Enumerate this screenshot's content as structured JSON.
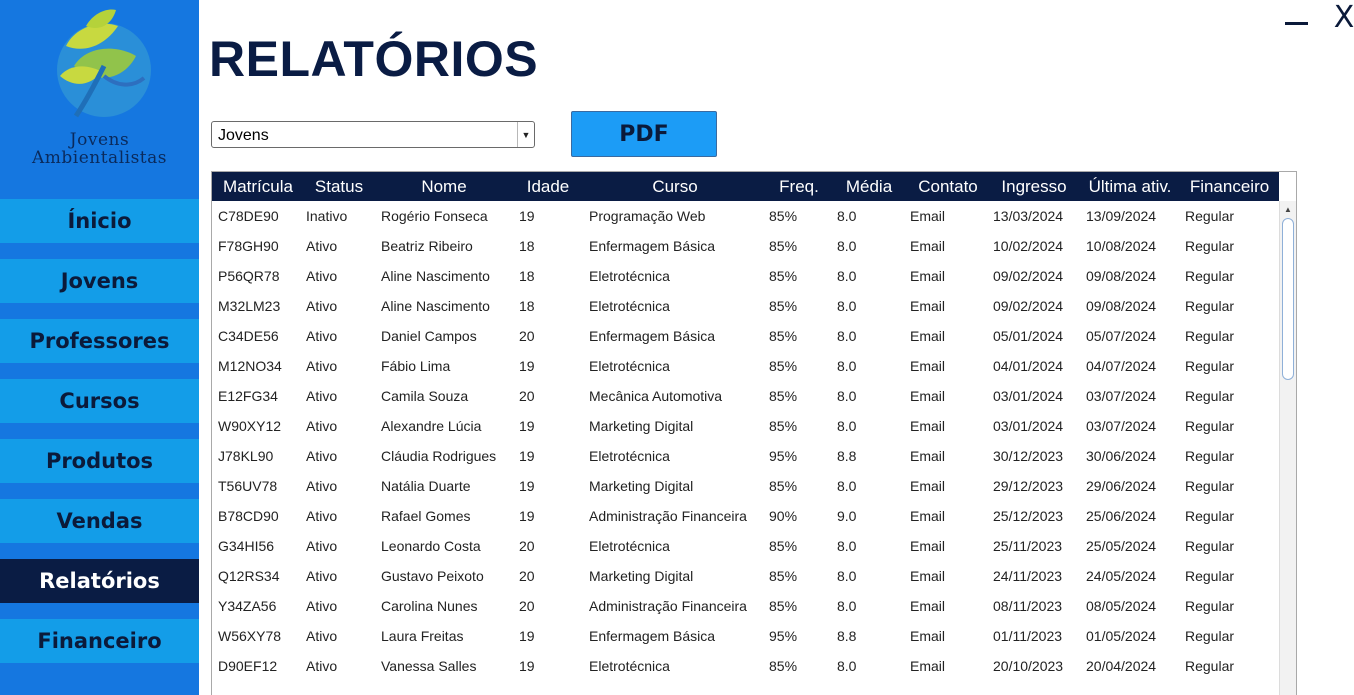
{
  "logo": {
    "line1": "Jovens",
    "line2": "Ambientalistas"
  },
  "colors": {
    "sidebar_bg": "#1577e0",
    "nav_bg": "#139de8",
    "nav_active": "#0a1c44",
    "header_bg": "#0a1c44",
    "pdf_button": "#1c9cf6"
  },
  "sidebar": {
    "items": [
      {
        "label": "Ínicio"
      },
      {
        "label": "Jovens"
      },
      {
        "label": "Professores"
      },
      {
        "label": "Cursos"
      },
      {
        "label": "Produtos"
      },
      {
        "label": "Vendas"
      },
      {
        "label": "Relatórios"
      },
      {
        "label": "Financeiro"
      }
    ],
    "active_index": 6
  },
  "window": {
    "minimize_icon": "minimize-icon",
    "close_label": "X"
  },
  "page": {
    "title": "RELATÓRIOS"
  },
  "report_select": {
    "value": "Jovens"
  },
  "pdf_button": {
    "label": "PDF"
  },
  "table": {
    "columns": [
      "Matrícula",
      "Status",
      "Nome",
      "Idade",
      "Curso",
      "Freq.",
      "Média",
      "Contato",
      "Ingresso",
      "Última ativ.",
      "Financeiro"
    ],
    "rows": [
      [
        "C78DE90",
        "Inativo",
        "Rogério Fonseca",
        "19",
        "Programação Web",
        "85%",
        "8.0",
        "Email",
        "13/03/2024",
        "13/09/2024",
        "Regular"
      ],
      [
        "F78GH90",
        "Ativo",
        "Beatriz Ribeiro",
        "18",
        "Enfermagem Básica",
        "85%",
        "8.0",
        "Email",
        "10/02/2024",
        "10/08/2024",
        "Regular"
      ],
      [
        "P56QR78",
        "Ativo",
        "Aline Nascimento",
        "18",
        "Eletrotécnica",
        "85%",
        "8.0",
        "Email",
        "09/02/2024",
        "09/08/2024",
        "Regular"
      ],
      [
        "M32LM23",
        "Ativo",
        "Aline Nascimento",
        "18",
        "Eletrotécnica",
        "85%",
        "8.0",
        "Email",
        "09/02/2024",
        "09/08/2024",
        "Regular"
      ],
      [
        "C34DE56",
        "Ativo",
        "Daniel Campos",
        "20",
        "Enfermagem Básica",
        "85%",
        "8.0",
        "Email",
        "05/01/2024",
        "05/07/2024",
        "Regular"
      ],
      [
        "M12NO34",
        "Ativo",
        "Fábio Lima",
        "19",
        "Eletrotécnica",
        "85%",
        "8.0",
        "Email",
        "04/01/2024",
        "04/07/2024",
        "Regular"
      ],
      [
        "E12FG34",
        "Ativo",
        "Camila Souza",
        "20",
        "Mecânica Automotiva",
        "85%",
        "8.0",
        "Email",
        "03/01/2024",
        "03/07/2024",
        "Regular"
      ],
      [
        "W90XY12",
        "Ativo",
        "Alexandre Lúcia",
        "19",
        "Marketing Digital",
        "85%",
        "8.0",
        "Email",
        "03/01/2024",
        "03/07/2024",
        "Regular"
      ],
      [
        "J78KL90",
        "Ativo",
        "Cláudia Rodrigues",
        "19",
        "Eletrotécnica",
        "95%",
        "8.8",
        "Email",
        "30/12/2023",
        "30/06/2024",
        "Regular"
      ],
      [
        "T56UV78",
        "Ativo",
        "Natália Duarte",
        "19",
        "Marketing Digital",
        "85%",
        "8.0",
        "Email",
        "29/12/2023",
        "29/06/2024",
        "Regular"
      ],
      [
        "B78CD90",
        "Ativo",
        "Rafael Gomes",
        "19",
        "Administração Financeira",
        "90%",
        "9.0",
        "Email",
        "25/12/2023",
        "25/06/2024",
        "Regular"
      ],
      [
        "G34HI56",
        "Ativo",
        "Leonardo Costa",
        "20",
        "Eletrotécnica",
        "85%",
        "8.0",
        "Email",
        "25/11/2023",
        "25/05/2024",
        "Regular"
      ],
      [
        "Q12RS34",
        "Ativo",
        "Gustavo Peixoto",
        "20",
        "Marketing Digital",
        "85%",
        "8.0",
        "Email",
        "24/11/2023",
        "24/05/2024",
        "Regular"
      ],
      [
        "Y34ZA56",
        "Ativo",
        "Carolina Nunes",
        "20",
        "Administração Financeira",
        "85%",
        "8.0",
        "Email",
        "08/11/2023",
        "08/05/2024",
        "Regular"
      ],
      [
        "W56XY78",
        "Ativo",
        "Laura Freitas",
        "19",
        "Enfermagem Básica",
        "95%",
        "8.8",
        "Email",
        "01/11/2023",
        "01/05/2024",
        "Regular"
      ],
      [
        "D90EF12",
        "Ativo",
        "Vanessa Salles",
        "19",
        "Eletrotécnica",
        "85%",
        "8.0",
        "Email",
        "20/10/2023",
        "20/04/2024",
        "Regular"
      ]
    ]
  }
}
